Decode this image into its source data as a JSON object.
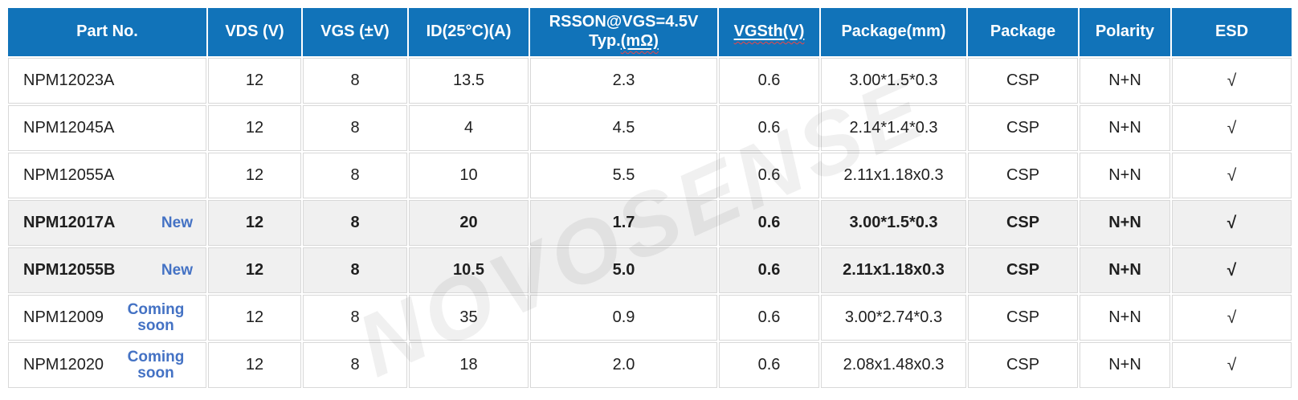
{
  "watermark": "NOVOSENSE",
  "colors": {
    "header_bg": "#1173b9",
    "row_alt_bg": "#f0f0f0",
    "grid_border": "#d8d8d8",
    "badge_blue": "#4472c4",
    "spell_red": "#f04545",
    "watermark_gray": "rgba(0,0,0,0.06)"
  },
  "header": {
    "part": "Part No.",
    "vds": "VDS (V)",
    "vgs": "VGS (±V)",
    "id25": "ID(25°C)(A)",
    "rsson_line1": "RSSON@VGS=4.5V",
    "rsson_line2_prefix": "Typ.",
    "rsson_line2_spell": "(mΩ)",
    "vgsth_spell": "VGSth(V)",
    "package_mm": "Package(mm)",
    "package": "Package",
    "polarity": "Polarity",
    "esd": "ESD"
  },
  "rows": [
    {
      "part": "NPM12023A",
      "badge": "",
      "vds": "12",
      "vgs": "8",
      "id25": "13.5",
      "rsson": "2.3",
      "vgsth": "0.6",
      "package_mm": "3.00*1.5*0.3",
      "package": "CSP",
      "polarity": "N+N",
      "esd": "√",
      "highlight": false
    },
    {
      "part": "NPM12045A",
      "badge": "",
      "vds": "12",
      "vgs": "8",
      "id25": "4",
      "rsson": "4.5",
      "vgsth": "0.6",
      "package_mm": "2.14*1.4*0.3",
      "package": "CSP",
      "polarity": "N+N",
      "esd": "√",
      "highlight": false
    },
    {
      "part": "NPM12055A",
      "badge": "",
      "vds": "12",
      "vgs": "8",
      "id25": "10",
      "rsson": "5.5",
      "vgsth": "0.6",
      "package_mm": "2.11x1.18x0.3",
      "package": "CSP",
      "polarity": "N+N",
      "esd": "√",
      "highlight": false
    },
    {
      "part": "NPM12017A",
      "badge": "New",
      "vds": "12",
      "vgs": "8",
      "id25": "20",
      "rsson": "1.7",
      "vgsth": "0.6",
      "package_mm": "3.00*1.5*0.3",
      "package": "CSP",
      "polarity": "N+N",
      "esd": "√",
      "highlight": true
    },
    {
      "part": "NPM12055B",
      "badge": "New",
      "vds": "12",
      "vgs": "8",
      "id25": "10.5",
      "rsson": "5.0",
      "vgsth": "0.6",
      "package_mm": "2.11x1.18x0.3",
      "package": "CSP",
      "polarity": "N+N",
      "esd": "√",
      "highlight": true
    },
    {
      "part": "NPM12009",
      "badge": "Coming soon",
      "vds": "12",
      "vgs": "8",
      "id25": "35",
      "rsson": "0.9",
      "vgsth": "0.6",
      "package_mm": "3.00*2.74*0.3",
      "package": "CSP",
      "polarity": "N+N",
      "esd": "√",
      "highlight": false
    },
    {
      "part": "NPM12020",
      "badge": "Coming soon",
      "vds": "12",
      "vgs": "8",
      "id25": "18",
      "rsson": "2.0",
      "vgsth": "0.6",
      "package_mm": "2.08x1.48x0.3",
      "package": "CSP",
      "polarity": "N+N",
      "esd": "√",
      "highlight": false
    }
  ]
}
